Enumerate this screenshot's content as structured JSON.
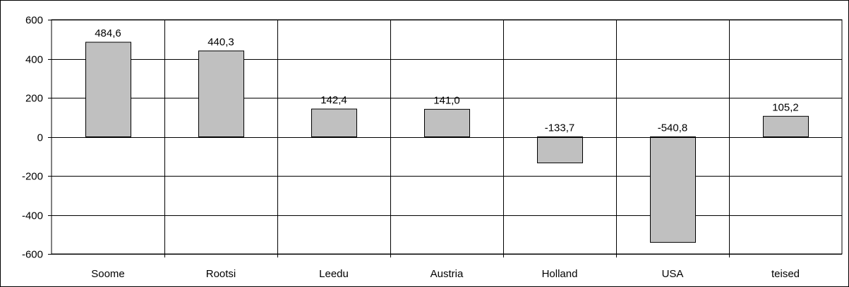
{
  "chart_data": {
    "type": "bar",
    "categories": [
      "Soome",
      "Rootsi",
      "Leedu",
      "Austria",
      "Holland",
      "USA",
      "teised"
    ],
    "values": [
      484.6,
      440.3,
      142.4,
      141.0,
      -133.7,
      -540.8,
      105.2
    ],
    "value_labels": [
      "484,6",
      "440,3",
      "142,4",
      "141,0",
      "-133,7",
      "-540,8",
      "105,2"
    ],
    "title": "",
    "xlabel": "",
    "ylabel": "",
    "ylim": [
      -600,
      600
    ],
    "yticks": [
      600,
      400,
      200,
      0,
      -200,
      -400,
      -600
    ],
    "ytick_labels": [
      "600",
      "400",
      "200",
      "0",
      "-200",
      "-400",
      "-600"
    ],
    "grid": true,
    "legend": "none",
    "colors": {
      "bar_fill": "#c0c0c0",
      "bar_stroke": "#000000",
      "grid": "#000000",
      "frame": "#000000"
    }
  }
}
